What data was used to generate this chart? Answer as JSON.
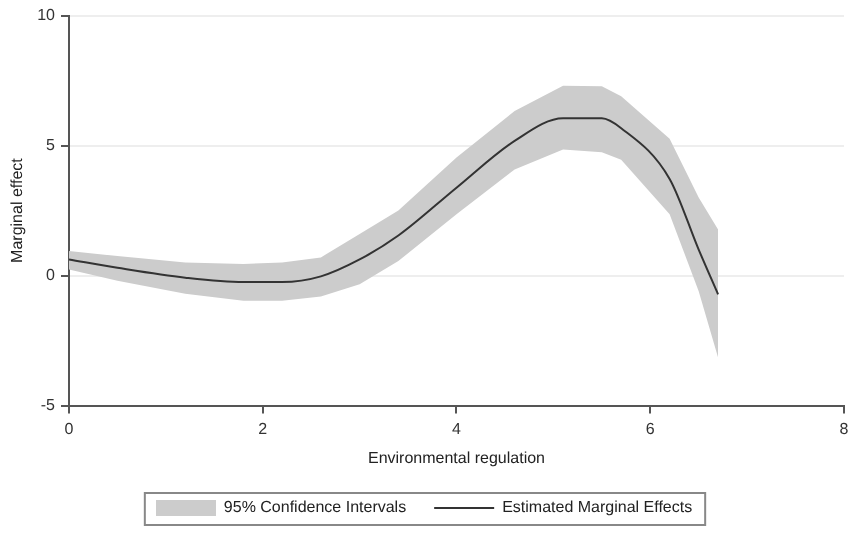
{
  "chart_data": {
    "type": "line",
    "xlabel": "Environmental regulation",
    "ylabel": "Marginal effect",
    "x": [
      0,
      0.5,
      1.2,
      1.8,
      2.2,
      2.6,
      3.0,
      3.4,
      4.0,
      4.6,
      5.1,
      5.5,
      5.7,
      6.2,
      6.5,
      6.7
    ],
    "annotations": [
      "95% Confidence Intervals"
    ],
    "series": [
      {
        "name": "Estimated Marginal Effects",
        "color": "#333333",
        "values": [
          0.62,
          0.3,
          -0.08,
          -0.25,
          -0.25,
          -0.03,
          0.62,
          1.54,
          3.38,
          5.18,
          6.05,
          6.05,
          5.67,
          3.72,
          1.0,
          -0.72
        ],
        "lower": [
          0.23,
          -0.2,
          -0.7,
          -0.97,
          -0.97,
          -0.8,
          -0.33,
          0.56,
          2.36,
          4.08,
          4.85,
          4.74,
          4.46,
          2.36,
          -0.6,
          -3.15
        ],
        "upper": [
          0.95,
          0.75,
          0.5,
          0.45,
          0.5,
          0.7,
          1.6,
          2.5,
          4.54,
          6.33,
          7.3,
          7.28,
          6.9,
          5.26,
          3.0,
          1.77
        ]
      }
    ],
    "xlim": [
      0,
      8
    ],
    "xticks": [
      0,
      2,
      4,
      6,
      8
    ],
    "ylim": [
      -5,
      10
    ],
    "yticks": [
      -5,
      0,
      5,
      10
    ],
    "grid": "y",
    "legend": "bottom",
    "marker": "none",
    "line_style": "solid"
  }
}
